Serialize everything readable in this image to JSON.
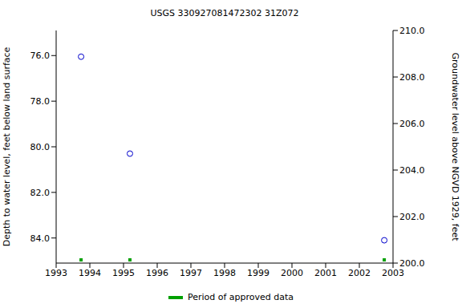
{
  "chart_data": {
    "type": "scatter",
    "title": "USGS 330927081472302 31Z072",
    "y_label": "Depth to water level, feet below land surface",
    "y2_label": "Groundwater level above NGVD 1929, feet",
    "xlim": [
      1993,
      2003
    ],
    "xticks": [
      1993,
      1994,
      1995,
      1996,
      1997,
      1998,
      1999,
      2000,
      2001,
      2002,
      2003
    ],
    "ylim": [
      85.1,
      74.9
    ],
    "yticks": [
      {
        "value": 76,
        "label": "76.0"
      },
      {
        "value": 78,
        "label": "78.0"
      },
      {
        "value": 80,
        "label": "80.0"
      },
      {
        "value": 82,
        "label": "82.0"
      },
      {
        "value": 84,
        "label": "84.0"
      }
    ],
    "y2lim": [
      200,
      210
    ],
    "y2ticks": [
      {
        "value": 200,
        "label": "200.0"
      },
      {
        "value": 202,
        "label": "202.0"
      },
      {
        "value": 204,
        "label": "204.0"
      },
      {
        "value": 206,
        "label": "206.0"
      },
      {
        "value": 208,
        "label": "208.0"
      },
      {
        "value": 210,
        "label": "210.0"
      }
    ],
    "legend": "bottom",
    "series": [
      {
        "color": "#0000cc",
        "marker": "circle",
        "x": [
          1993.74,
          1995.19,
          2002.74
        ],
        "values": [
          76.05,
          80.3,
          84.1
        ]
      },
      {
        "name": "Period of approved data",
        "color": "#00a000",
        "marker": "square",
        "x": [
          1993.74,
          1995.19,
          2002.74
        ]
      }
    ]
  }
}
